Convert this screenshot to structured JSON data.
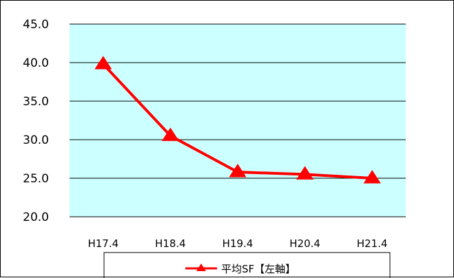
{
  "chart_data": {
    "type": "line",
    "categories": [
      "H17.4",
      "H18.4",
      "H19.4",
      "H20.4",
      "H21.4"
    ],
    "series": [
      {
        "name": "平均SF【左軸】",
        "values": [
          39.8,
          30.5,
          25.8,
          25.5,
          25.0
        ],
        "color": "#ff0000",
        "marker": "triangle"
      }
    ],
    "ylim": [
      20.0,
      45.0
    ],
    "yticks": [
      "20.0",
      "25.0",
      "30.0",
      "35.0",
      "40.0",
      "45.0"
    ],
    "title": "",
    "xlabel": "",
    "ylabel": "",
    "grid": true,
    "legend_position": "bottom",
    "plot_background": "#ccffff"
  }
}
